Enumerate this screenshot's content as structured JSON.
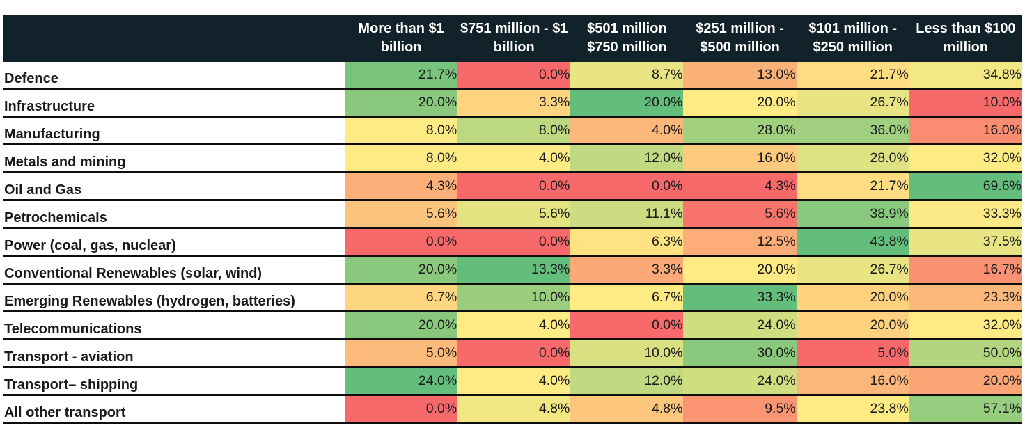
{
  "chart_data": {
    "type": "heatmap",
    "title": "",
    "columns": [
      "More than $1 billion",
      "$751 million - $1 billion",
      "$501 million $750 million",
      "$251 million - $500 million",
      "$101 million - $250 million",
      "Less than $100 million"
    ],
    "rows": [
      {
        "label": "Defence",
        "values": [
          21.7,
          0.0,
          8.7,
          13.0,
          21.7,
          34.8
        ]
      },
      {
        "label": "Infrastructure",
        "values": [
          20.0,
          3.3,
          20.0,
          20.0,
          26.7,
          10.0
        ]
      },
      {
        "label": "Manufacturing",
        "values": [
          8.0,
          8.0,
          4.0,
          28.0,
          36.0,
          16.0
        ]
      },
      {
        "label": "Metals and mining",
        "values": [
          8.0,
          4.0,
          12.0,
          16.0,
          28.0,
          32.0
        ]
      },
      {
        "label": "Oil and Gas",
        "values": [
          4.3,
          0.0,
          0.0,
          4.3,
          21.7,
          69.6
        ]
      },
      {
        "label": "Petrochemicals",
        "values": [
          5.6,
          5.6,
          11.1,
          5.6,
          38.9,
          33.3
        ]
      },
      {
        "label": "Power (coal, gas, nuclear)",
        "values": [
          0.0,
          0.0,
          6.3,
          12.5,
          43.8,
          37.5
        ]
      },
      {
        "label": "Conventional Renewables (solar, wind)",
        "values": [
          20.0,
          13.3,
          3.3,
          20.0,
          26.7,
          16.7
        ]
      },
      {
        "label": "Emerging Renewables (hydrogen, batteries)",
        "values": [
          6.7,
          10.0,
          6.7,
          33.3,
          20.0,
          23.3
        ]
      },
      {
        "label": "Telecommunications",
        "values": [
          20.0,
          4.0,
          0.0,
          24.0,
          20.0,
          32.0
        ]
      },
      {
        "label": "Transport - aviation",
        "values": [
          5.0,
          0.0,
          10.0,
          30.0,
          5.0,
          50.0
        ]
      },
      {
        "label": "Transport– shipping",
        "values": [
          24.0,
          4.0,
          12.0,
          24.0,
          16.0,
          20.0
        ]
      },
      {
        "label": "All other transport",
        "values": [
          0.0,
          4.8,
          4.8,
          9.5,
          23.8,
          57.1
        ]
      }
    ],
    "value_suffix": "%",
    "color_scale": {
      "low": "#f8696b",
      "mid": "#ffeb84",
      "high": "#63be7b"
    },
    "header_background": "#12222a"
  }
}
